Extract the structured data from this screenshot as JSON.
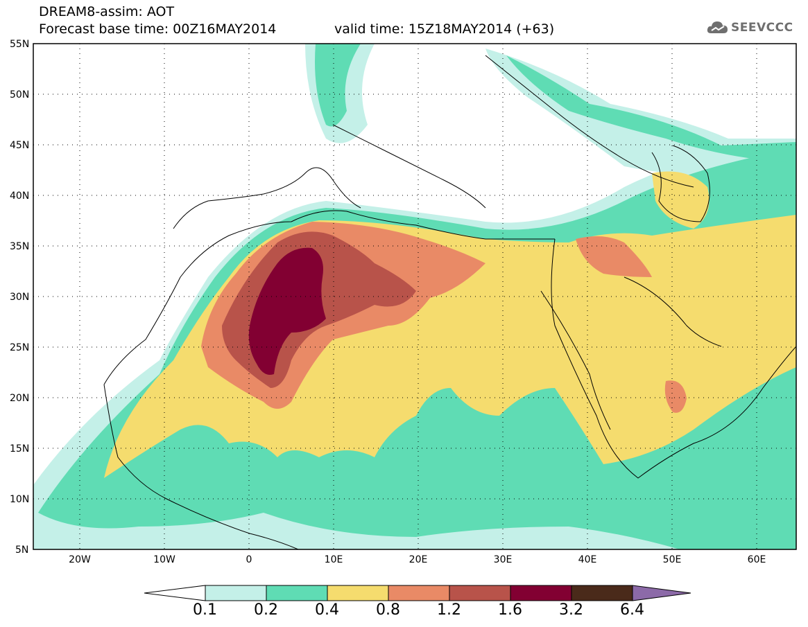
{
  "header": {
    "title_line1": "DREAM8-assim: AOT",
    "title_line2": "Forecast base time: 00Z16MAY2014",
    "valid_time": "valid time: 15Z18MAY2014 (+63)",
    "logo_text": "SEEVCCC"
  },
  "map": {
    "lat_labels": [
      "55N",
      "50N",
      "45N",
      "40N",
      "35N",
      "30N",
      "25N",
      "20N",
      "15N",
      "10N",
      "5N"
    ],
    "lon_labels": [
      "20W",
      "10W",
      "0",
      "10E",
      "20E",
      "30E",
      "40E",
      "50E",
      "60E"
    ],
    "extent": {
      "lon_min": -25,
      "lon_max": 65,
      "lat_min": 5,
      "lat_max": 55
    }
  },
  "legend": {
    "values": [
      "0.1",
      "0.2",
      "0.4",
      "0.8",
      "1.2",
      "1.6",
      "3.2",
      "6.4"
    ],
    "colors": [
      "#ffffff",
      "#c4f0e8",
      "#5fdcb4",
      "#f5dc6e",
      "#e98a66",
      "#b8534a",
      "#820032",
      "#4a2a1a",
      "#8c6aa8"
    ]
  }
}
